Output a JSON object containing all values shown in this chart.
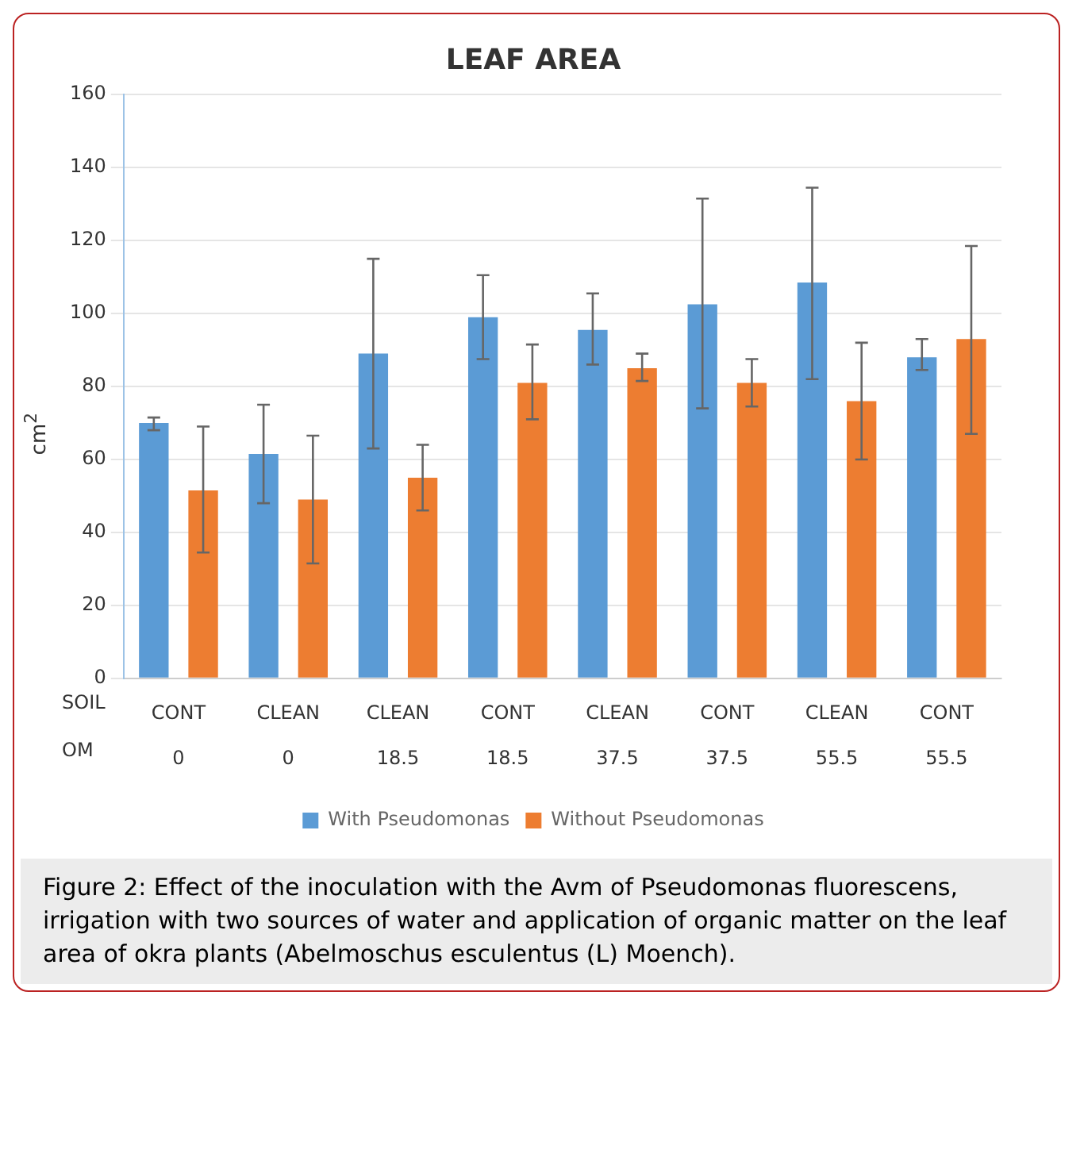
{
  "chart_data": {
    "type": "bar",
    "title": "LEAF AREA",
    "ylabel": "cm$^{2}$",
    "categories": [
      "CONT\n0",
      "CLEAN\n0",
      "CLEAN\n18.5",
      "CONT\n18.5",
      "CLEAN\n37.5",
      "CONT\n37.5",
      "CLEAN\n55.5",
      "CONT\n55.5"
    ],
    "series": [
      {
        "name": "With Pseudomonas",
        "color": "#5b9bd5",
        "values": [
          70,
          61.5,
          89,
          99,
          95.5,
          102.5,
          108.5,
          88
        ],
        "errors": [
          [
            68,
            71.5
          ],
          [
            48,
            75
          ],
          [
            63,
            115
          ],
          [
            87.5,
            110.5
          ],
          [
            86,
            105.5
          ],
          [
            74,
            131.5
          ],
          [
            82,
            134.5
          ],
          [
            84.5,
            93
          ]
        ]
      },
      {
        "name": "Without Pseudomonas",
        "color": "#ed7d31",
        "values": [
          51.5,
          49,
          55,
          81,
          85,
          81,
          76,
          93
        ],
        "errors": [
          [
            34.5,
            69
          ],
          [
            31.5,
            66.5
          ],
          [
            46,
            64
          ],
          [
            71,
            91.5
          ],
          [
            81.5,
            89
          ],
          [
            74.5,
            87.5
          ],
          [
            60,
            92
          ],
          [
            67,
            118.5
          ]
        ]
      }
    ],
    "ylim": [
      0,
      160
    ],
    "yticks": [
      0,
      20,
      40,
      60,
      80,
      100,
      120,
      140,
      160
    ],
    "grid": "y",
    "legend": "bottom",
    "annotations": [
      "SOIL",
      "OM",
      "Figure 2: Effect of the inoculation with the Avm of Pseudomonas fluorescens, irrigation with two sources of water and application of organic matter on the leaf area of okra plants (Abelmoschus esculentus (L) Moench)."
    ]
  }
}
